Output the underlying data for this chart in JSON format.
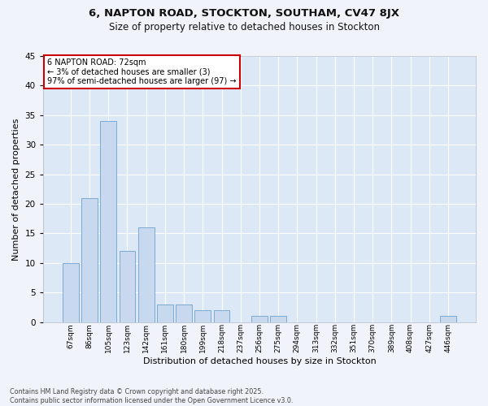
{
  "title_line1": "6, NAPTON ROAD, STOCKTON, SOUTHAM, CV47 8JX",
  "title_line2": "Size of property relative to detached houses in Stockton",
  "xlabel": "Distribution of detached houses by size in Stockton",
  "ylabel": "Number of detached properties",
  "categories": [
    "67sqm",
    "86sqm",
    "105sqm",
    "123sqm",
    "142sqm",
    "161sqm",
    "180sqm",
    "199sqm",
    "218sqm",
    "237sqm",
    "256sqm",
    "275sqm",
    "294sqm",
    "313sqm",
    "332sqm",
    "351sqm",
    "370sqm",
    "389sqm",
    "408sqm",
    "427sqm",
    "446sqm"
  ],
  "values": [
    10,
    21,
    34,
    12,
    16,
    3,
    3,
    2,
    2,
    0,
    1,
    1,
    0,
    0,
    0,
    0,
    0,
    0,
    0,
    0,
    1
  ],
  "bar_color": "#c8d8ee",
  "bar_edge_color": "#7aaad4",
  "background_color": "#dce8f5",
  "grid_color": "#ffffff",
  "annotation_box_facecolor": "#ffffff",
  "annotation_border_color": "#cc0000",
  "annotation_text_line1": "6 NAPTON ROAD: 72sqm",
  "annotation_text_line2": "← 3% of detached houses are smaller (3)",
  "annotation_text_line3": "97% of semi-detached houses are larger (97) →",
  "ylim": [
    0,
    45
  ],
  "yticks": [
    0,
    5,
    10,
    15,
    20,
    25,
    30,
    35,
    40,
    45
  ],
  "footer_line1": "Contains HM Land Registry data © Crown copyright and database right 2025.",
  "footer_line2": "Contains public sector information licensed under the Open Government Licence v3.0.",
  "fig_width": 6.0,
  "fig_height": 5.0,
  "dpi": 100
}
